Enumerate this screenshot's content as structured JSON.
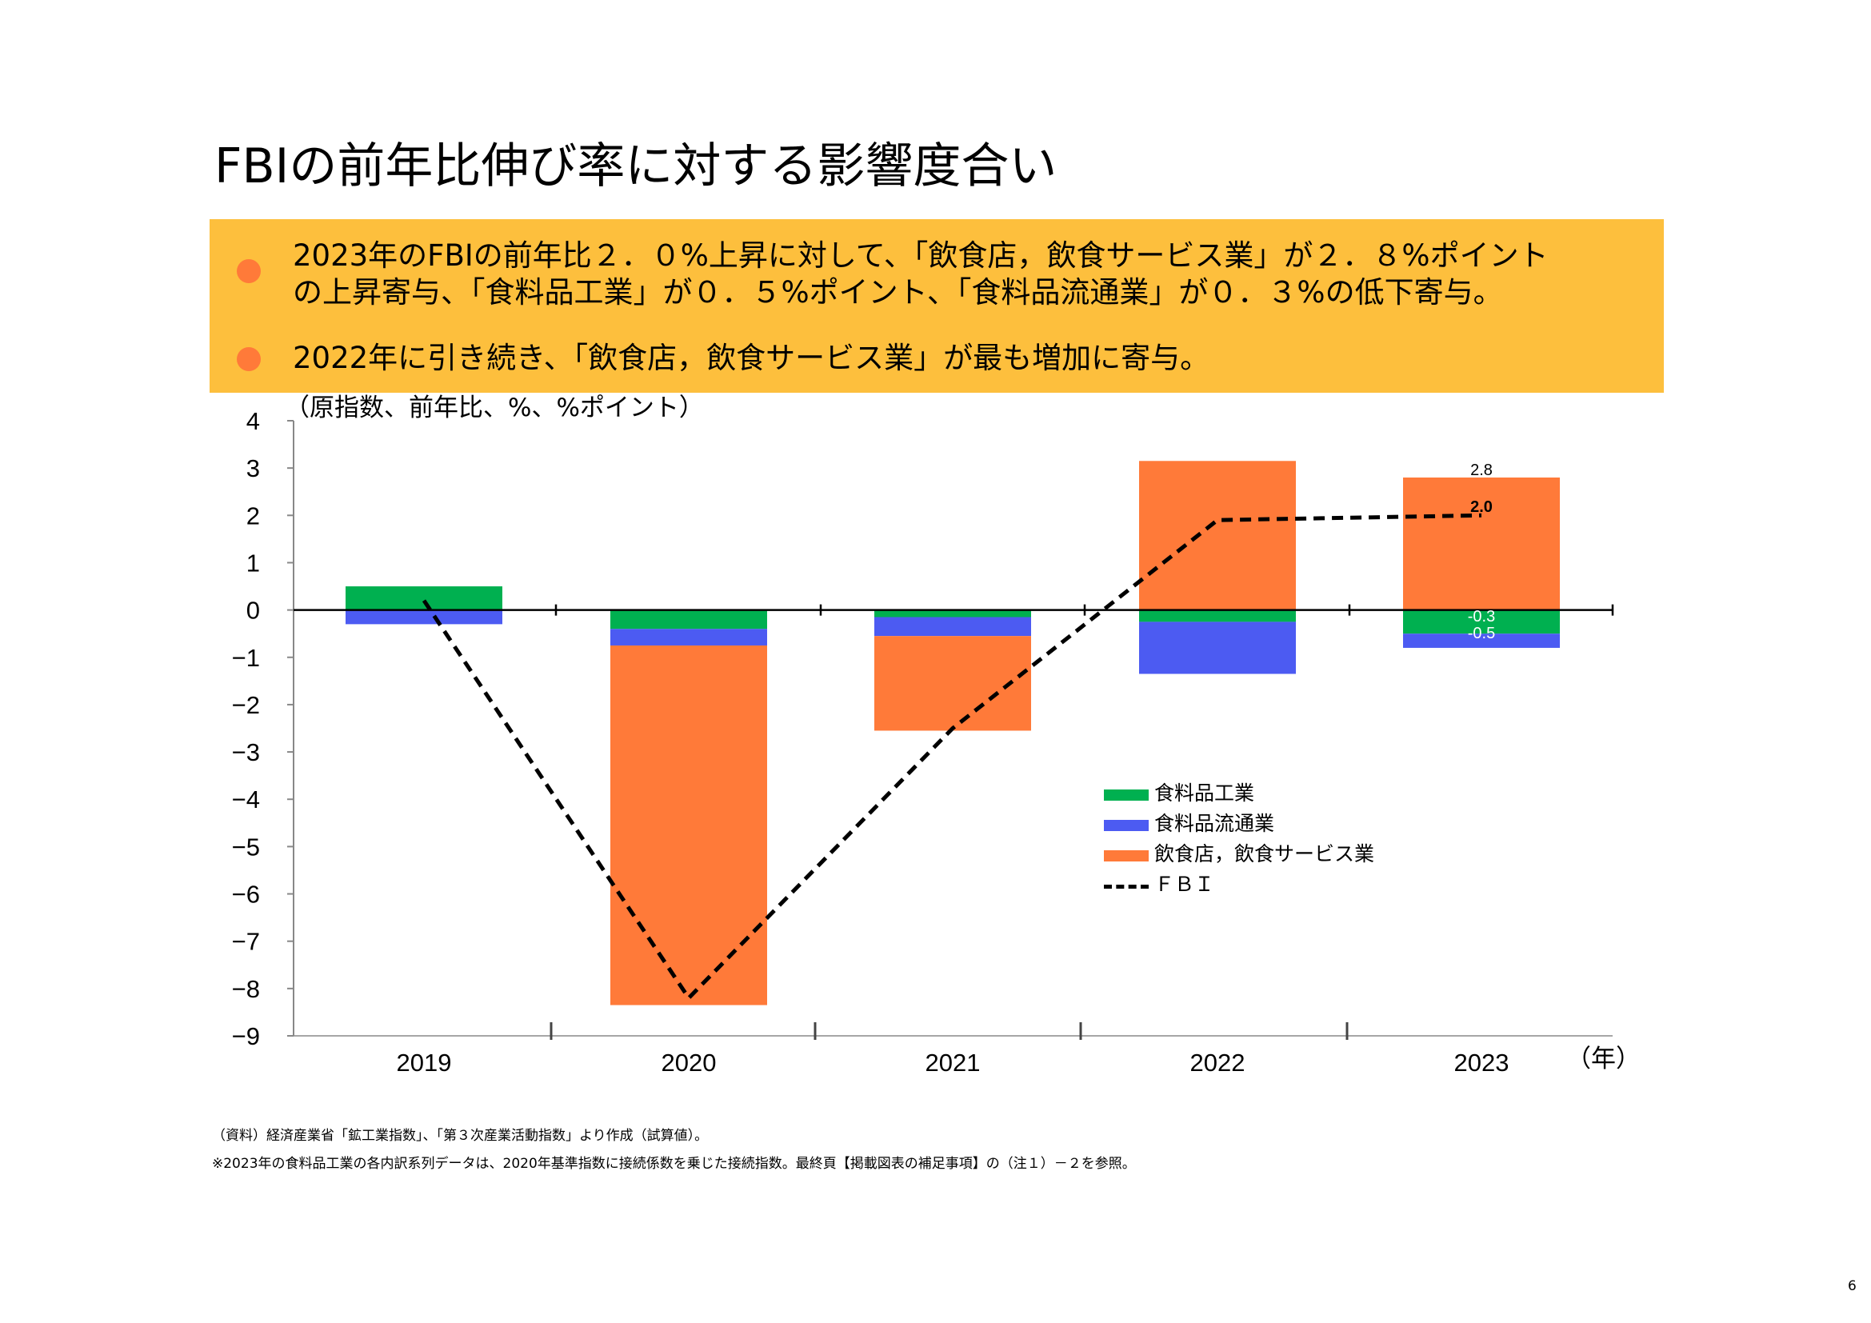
{
  "title": "FBIの前年比伸び率に対する影響度合い",
  "summary": {
    "bullets": [
      {
        "lines": [
          "2023年のFBIの前年比２．０%上昇に対して、「飲食店，飲食サービス業」が２．８%ポイント",
          "の上昇寄与、「食料品工業」が０．５%ポイント、「食料品流通業」が０．３%の低下寄与。"
        ]
      },
      {
        "lines": [
          "2022年に引き続き、「飲食店，飲食サービス業」が最も増加に寄与。"
        ]
      }
    ],
    "bullet_color": "#FF7A39",
    "background_color": "#FDBF3D"
  },
  "chart_data": {
    "type": "bar",
    "stacked": true,
    "ylabel": "（原指数、前年比、%、%ポイント）",
    "xlabel": "（年）",
    "categories": [
      "2019",
      "2020",
      "2021",
      "2022",
      "2023"
    ],
    "ylim": [
      -9,
      4
    ],
    "yticks": [
      4,
      3,
      2,
      1,
      0,
      -1,
      -2,
      -3,
      -4,
      -5,
      -6,
      -7,
      -8,
      -9
    ],
    "series": [
      {
        "name": "食料品工業",
        "color": "#00B050",
        "values": [
          0.5,
          -0.4,
          -0.15,
          -0.25,
          -0.5
        ]
      },
      {
        "name": "食料品流通業",
        "color": "#4C5BF2",
        "values": [
          -0.3,
          -0.35,
          -0.4,
          -1.1,
          -0.3
        ]
      },
      {
        "name": "飲食店，飲食サービス業",
        "color": "#FF7A39",
        "values": [
          0.0,
          -7.6,
          -2.0,
          3.15,
          2.8
        ]
      }
    ],
    "line": {
      "name": "ＦＢＩ",
      "color": "#000000",
      "values": [
        0.2,
        -8.2,
        -2.5,
        1.9,
        2.0
      ]
    },
    "data_labels": [
      {
        "text": "2.8",
        "category": "2023",
        "series": "飲食店，飲食サービス業"
      },
      {
        "text": "2.0",
        "category": "2023",
        "series": "ＦＢＩ"
      },
      {
        "text": "-0.3",
        "category": "2023",
        "series": "食料品流通業"
      },
      {
        "text": "-0.5",
        "category": "2023",
        "series": "食料品工業"
      }
    ],
    "legend_position": "center-right"
  },
  "footnotes": [
    "（資料）経済産業省「鉱工業指数」、「第３次産業活動指数」より作成（試算値）。",
    "※2023年の食料品工業の各内訳系列データは、2020年基準指数に接続係数を乗じた接続指数。最終頁【掲載図表の補足事項】の（注１）－２を参照。"
  ],
  "page_number": "6"
}
